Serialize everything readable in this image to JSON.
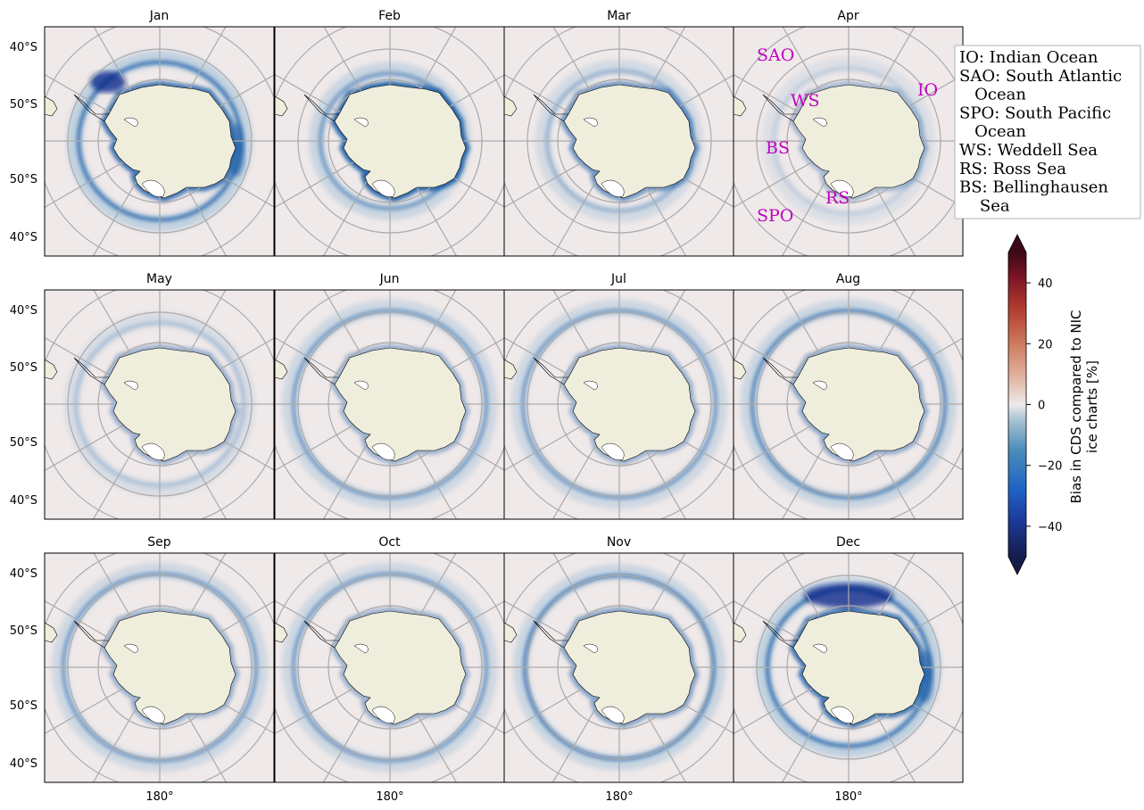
{
  "panels": [
    {
      "title": "Jan",
      "bias": "summer_heavy"
    },
    {
      "title": "Feb",
      "bias": "summer_coast"
    },
    {
      "title": "Mar",
      "bias": "autumn_coast"
    },
    {
      "title": "Apr",
      "bias": "autumn_faint"
    },
    {
      "title": "May",
      "bias": "winter_faint"
    },
    {
      "title": "Jun",
      "bias": "winter_ring"
    },
    {
      "title": "Jul",
      "bias": "winter_ring"
    },
    {
      "title": "Aug",
      "bias": "winter_ring_strong"
    },
    {
      "title": "Sep",
      "bias": "winter_ring"
    },
    {
      "title": "Oct",
      "bias": "winter_ring"
    },
    {
      "title": "Nov",
      "bias": "spring_ring"
    },
    {
      "title": "Dec",
      "bias": "summer_heavy"
    }
  ],
  "lat_labels_top": [
    "40°S",
    "50°S"
  ],
  "lat_labels_bottom": [
    "50°S",
    "40°S"
  ],
  "lon_label": "180°",
  "regions": {
    "SAO": "SAO",
    "WS": "WS",
    "BS": "BS",
    "SPO": "SPO",
    "RS": "RS",
    "IO": "IO"
  },
  "legend": [
    [
      "IO: Indian Ocean"
    ],
    [
      "SAO: South Atlantic",
      "   Ocean"
    ],
    [
      "SPO: South Pacific",
      "   Ocean"
    ],
    [
      "WS: Weddell Sea"
    ],
    [
      "RS: Ross Sea"
    ],
    [
      "BS: Bellinghausen",
      "    Sea"
    ]
  ],
  "colorbar": {
    "min": -50,
    "max": 50,
    "ticks": [
      40,
      20,
      0,
      -20,
      -40
    ],
    "tick_labels": [
      "40",
      "20",
      "0",
      "−20",
      "−40"
    ],
    "label_line1": "Bias in CDS compared to NIC",
    "label_line2": "ice charts [%]",
    "colormap": "balance",
    "extend": "both"
  },
  "colors": {
    "ocean": "#f0e9e9",
    "land": "#efeedd",
    "grid": "#aaaaaa",
    "bias_blue": "#1f5fa8",
    "bias_light": "#8fb8d6",
    "bias_dark": "#0b2a8c",
    "region_text": "#c000c0"
  }
}
